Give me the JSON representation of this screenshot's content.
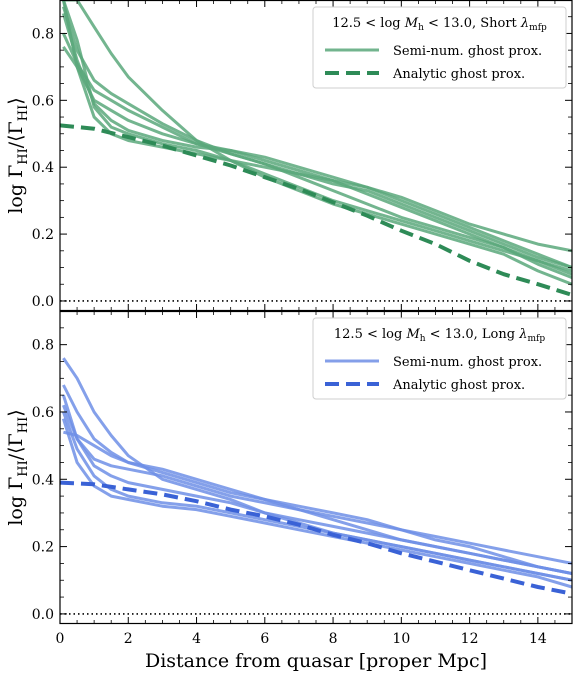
{
  "chart_data": [
    {
      "type": "line",
      "legend_title": "12.5 < log M_h < 13.0, Short λ_mfp",
      "legend_title_parts": {
        "pre": "12.5 < log ",
        "M": "M",
        "Msub": "h",
        "mid": " < 13.0, Short ",
        "lam": "λ",
        "lamsub": "mfp"
      },
      "legend_position": "top-right",
      "ylabel": "log Γ_HI/⟨Γ_HI⟩",
      "ylabel_parts": {
        "pre": "log Γ",
        "sub1": "HI",
        "mid": "/⟨Γ",
        "sub2": "HI",
        "post": "⟩"
      },
      "xlim": [
        0,
        15
      ],
      "ylim": [
        -0.03,
        0.9
      ],
      "yticks": [
        0.0,
        0.2,
        0.4,
        0.6,
        0.8
      ],
      "ytick_labels": [
        "0.0",
        "0.2",
        "0.4",
        "0.6",
        "0.8"
      ],
      "reference_line_y": 0.0,
      "color": "#5aa87b",
      "dashed_color": "#2e8b57",
      "legend_entries": [
        {
          "label": "Semi-num. ghost prox.",
          "style": "solid"
        },
        {
          "label": "Analytic ghost prox.",
          "style": "dashed"
        }
      ],
      "series": [
        {
          "style": "solid",
          "x": [
            0.1,
            0.5,
            1,
            1.5,
            2,
            3,
            4,
            5,
            6,
            7,
            8,
            9,
            10,
            11,
            12,
            13,
            14,
            15
          ],
          "y": [
            0.88,
            0.75,
            0.66,
            0.62,
            0.59,
            0.53,
            0.48,
            0.44,
            0.41,
            0.37,
            0.33,
            0.29,
            0.25,
            0.22,
            0.19,
            0.16,
            0.12,
            0.08
          ]
        },
        {
          "style": "solid",
          "x": [
            0.1,
            0.5,
            1,
            1.5,
            2,
            3,
            4,
            5,
            6,
            7,
            8,
            9,
            10,
            11,
            12,
            13,
            14,
            15
          ],
          "y": [
            0.8,
            0.71,
            0.63,
            0.6,
            0.57,
            0.52,
            0.47,
            0.44,
            0.41,
            0.38,
            0.35,
            0.33,
            0.29,
            0.25,
            0.21,
            0.17,
            0.13,
            0.1
          ]
        },
        {
          "style": "solid",
          "x": [
            0.1,
            0.5,
            1,
            1.5,
            2,
            3,
            4,
            5,
            6,
            7,
            8,
            9,
            10,
            11,
            12,
            13,
            14,
            15
          ],
          "y": [
            0.76,
            0.7,
            0.6,
            0.57,
            0.54,
            0.5,
            0.47,
            0.45,
            0.42,
            0.39,
            0.36,
            0.32,
            0.28,
            0.24,
            0.2,
            0.16,
            0.11,
            0.07
          ]
        },
        {
          "style": "solid",
          "x": [
            0.1,
            0.5,
            1,
            1.5,
            2,
            3,
            4,
            5,
            6,
            7,
            8,
            9,
            10,
            11,
            12,
            13,
            14,
            15
          ],
          "y": [
            0.86,
            0.72,
            0.59,
            0.54,
            0.51,
            0.48,
            0.46,
            0.45,
            0.43,
            0.4,
            0.37,
            0.34,
            0.3,
            0.26,
            0.22,
            0.18,
            0.14,
            0.1
          ]
        },
        {
          "style": "solid",
          "x": [
            0.1,
            0.5,
            1,
            1.5,
            2,
            3,
            4,
            5,
            6,
            7,
            8,
            9,
            10,
            11,
            12,
            13,
            14,
            15
          ],
          "y": [
            0.9,
            0.7,
            0.55,
            0.5,
            0.48,
            0.46,
            0.44,
            0.42,
            0.4,
            0.38,
            0.36,
            0.34,
            0.31,
            0.27,
            0.23,
            0.2,
            0.17,
            0.15
          ]
        },
        {
          "style": "solid",
          "x": [
            0.1,
            0.5,
            1,
            1.5,
            2,
            3,
            4,
            5,
            6,
            7,
            8,
            9,
            10,
            11,
            12,
            13,
            14,
            15
          ],
          "y": [
            0.9,
            0.78,
            0.58,
            0.52,
            0.5,
            0.47,
            0.45,
            0.42,
            0.38,
            0.34,
            0.3,
            0.27,
            0.24,
            0.21,
            0.18,
            0.15,
            0.12,
            0.09
          ]
        },
        {
          "style": "solid",
          "x": [
            0.1,
            0.5,
            1,
            1.5,
            2,
            3,
            4,
            5,
            6,
            7,
            8,
            9,
            10,
            11,
            12,
            13,
            14,
            15
          ],
          "y": [
            0.9,
            0.9,
            0.82,
            0.74,
            0.67,
            0.57,
            0.48,
            0.42,
            0.37,
            0.33,
            0.29,
            0.26,
            0.23,
            0.2,
            0.17,
            0.14,
            0.09,
            0.05
          ]
        },
        {
          "style": "dashed",
          "x": [
            0,
            1,
            2,
            3,
            4,
            5,
            6,
            7,
            8,
            9,
            10,
            11,
            12,
            13,
            14,
            15
          ],
          "y": [
            0.525,
            0.515,
            0.49,
            0.465,
            0.435,
            0.405,
            0.37,
            0.335,
            0.295,
            0.255,
            0.21,
            0.17,
            0.12,
            0.08,
            0.05,
            0.018
          ]
        }
      ]
    },
    {
      "type": "line",
      "legend_title": "12.5 < log M_h < 13.0, Long λ_mfp",
      "legend_title_parts": {
        "pre": "12.5 < log ",
        "M": "M",
        "Msub": "h",
        "mid": " < 13.0, Long ",
        "lam": "λ",
        "lamsub": "mfp"
      },
      "legend_position": "top-right",
      "xlabel": "Distance from quasar [proper Mpc]",
      "ylabel": "log Γ_HI/⟨Γ_HI⟩",
      "ylabel_parts": {
        "pre": "log Γ",
        "sub1": "HI",
        "mid": "/⟨Γ",
        "sub2": "HI",
        "post": "⟩"
      },
      "xlim": [
        0,
        15
      ],
      "ylim": [
        -0.03,
        0.9
      ],
      "xticks": [
        0,
        2,
        4,
        6,
        8,
        10,
        12,
        14
      ],
      "xtick_labels": [
        "0",
        "2",
        "4",
        "6",
        "8",
        "10",
        "12",
        "14"
      ],
      "yticks": [
        0.0,
        0.2,
        0.4,
        0.6,
        0.8
      ],
      "ytick_labels": [
        "0.0",
        "0.2",
        "0.4",
        "0.6",
        "0.8"
      ],
      "reference_line_y": 0.0,
      "color": "#6f8fe6",
      "dashed_color": "#3a62d6",
      "legend_entries": [
        {
          "label": "Semi-num. ghost prox.",
          "style": "solid"
        },
        {
          "label": "Analytic ghost prox.",
          "style": "dashed"
        }
      ],
      "series": [
        {
          "style": "solid",
          "x": [
            0.1,
            0.5,
            1,
            1.5,
            2,
            3,
            4,
            5,
            6,
            7,
            8,
            9,
            10,
            11,
            12,
            13,
            14,
            15
          ],
          "y": [
            0.76,
            0.7,
            0.6,
            0.53,
            0.47,
            0.4,
            0.37,
            0.34,
            0.3,
            0.27,
            0.24,
            0.22,
            0.2,
            0.18,
            0.16,
            0.14,
            0.12,
            0.1
          ]
        },
        {
          "style": "solid",
          "x": [
            0.1,
            0.5,
            1,
            1.5,
            2,
            3,
            4,
            5,
            6,
            7,
            8,
            9,
            10,
            11,
            12,
            13,
            14,
            15
          ],
          "y": [
            0.68,
            0.6,
            0.52,
            0.48,
            0.45,
            0.42,
            0.39,
            0.36,
            0.34,
            0.32,
            0.3,
            0.28,
            0.25,
            0.22,
            0.2,
            0.17,
            0.14,
            0.12
          ]
        },
        {
          "style": "solid",
          "x": [
            0.1,
            0.5,
            1,
            1.5,
            2,
            3,
            4,
            5,
            6,
            7,
            8,
            9,
            10,
            11,
            12,
            13,
            14,
            15
          ],
          "y": [
            0.65,
            0.52,
            0.46,
            0.44,
            0.43,
            0.41,
            0.38,
            0.35,
            0.33,
            0.31,
            0.29,
            0.27,
            0.25,
            0.23,
            0.21,
            0.19,
            0.17,
            0.15
          ]
        },
        {
          "style": "solid",
          "x": [
            0.1,
            0.5,
            1,
            1.5,
            2,
            3,
            4,
            5,
            6,
            7,
            8,
            9,
            10,
            11,
            12,
            13,
            14,
            15
          ],
          "y": [
            0.62,
            0.52,
            0.44,
            0.41,
            0.39,
            0.37,
            0.35,
            0.33,
            0.3,
            0.28,
            0.26,
            0.24,
            0.22,
            0.2,
            0.18,
            0.16,
            0.14,
            0.12
          ]
        },
        {
          "style": "solid",
          "x": [
            0.1,
            0.5,
            1,
            1.5,
            2,
            3,
            4,
            5,
            6,
            7,
            8,
            9,
            10,
            11,
            12,
            13,
            14,
            15
          ],
          "y": [
            0.6,
            0.49,
            0.41,
            0.37,
            0.35,
            0.33,
            0.32,
            0.3,
            0.28,
            0.26,
            0.24,
            0.22,
            0.2,
            0.18,
            0.16,
            0.14,
            0.12,
            0.1
          ]
        },
        {
          "style": "solid",
          "x": [
            0.1,
            0.5,
            1,
            1.5,
            2,
            3,
            4,
            5,
            6,
            7,
            8,
            9,
            10,
            11,
            12,
            13,
            14,
            15
          ],
          "y": [
            0.58,
            0.45,
            0.38,
            0.35,
            0.34,
            0.32,
            0.31,
            0.29,
            0.27,
            0.25,
            0.23,
            0.21,
            0.19,
            0.17,
            0.15,
            0.13,
            0.11,
            0.08
          ]
        },
        {
          "style": "solid",
          "x": [
            0.1,
            0.5,
            1,
            1.5,
            2,
            3,
            4,
            5,
            6,
            7,
            8,
            9,
            10,
            11,
            12,
            13,
            14,
            15
          ],
          "y": [
            0.54,
            0.53,
            0.5,
            0.47,
            0.45,
            0.43,
            0.4,
            0.37,
            0.34,
            0.31,
            0.28,
            0.25,
            0.22,
            0.2,
            0.18,
            0.16,
            0.14,
            0.12
          ]
        },
        {
          "style": "dashed",
          "x": [
            0,
            1,
            2,
            3,
            4,
            5,
            6,
            7,
            8,
            9,
            10,
            11,
            12,
            13,
            14,
            15
          ],
          "y": [
            0.39,
            0.385,
            0.37,
            0.355,
            0.335,
            0.31,
            0.29,
            0.265,
            0.235,
            0.21,
            0.18,
            0.155,
            0.13,
            0.105,
            0.08,
            0.06
          ]
        }
      ]
    }
  ]
}
